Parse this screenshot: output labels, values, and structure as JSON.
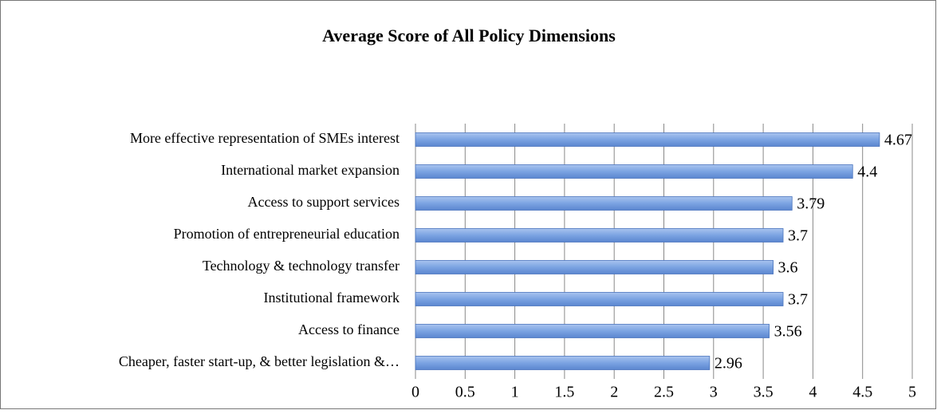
{
  "chart_data": {
    "type": "bar",
    "orientation": "horizontal",
    "title": "Average Score of All Policy Dimensions",
    "categories": [
      "More effective representation of SMEs interest",
      "International market expansion",
      "Access to support services",
      "Promotion of entrepreneurial education",
      "Technology & technology transfer",
      "Institutional framework",
      "Access to finance",
      "Cheaper, faster start-up, & better legislation &…"
    ],
    "values": [
      4.67,
      4.4,
      3.79,
      3.7,
      3.6,
      3.7,
      3.56,
      2.96
    ],
    "color": "#7ba3e2",
    "xlim": [
      0,
      5
    ],
    "xticks": [
      0,
      0.5,
      1,
      1.5,
      2,
      2.5,
      3,
      3.5,
      4,
      4.5,
      5
    ],
    "grid": true
  }
}
